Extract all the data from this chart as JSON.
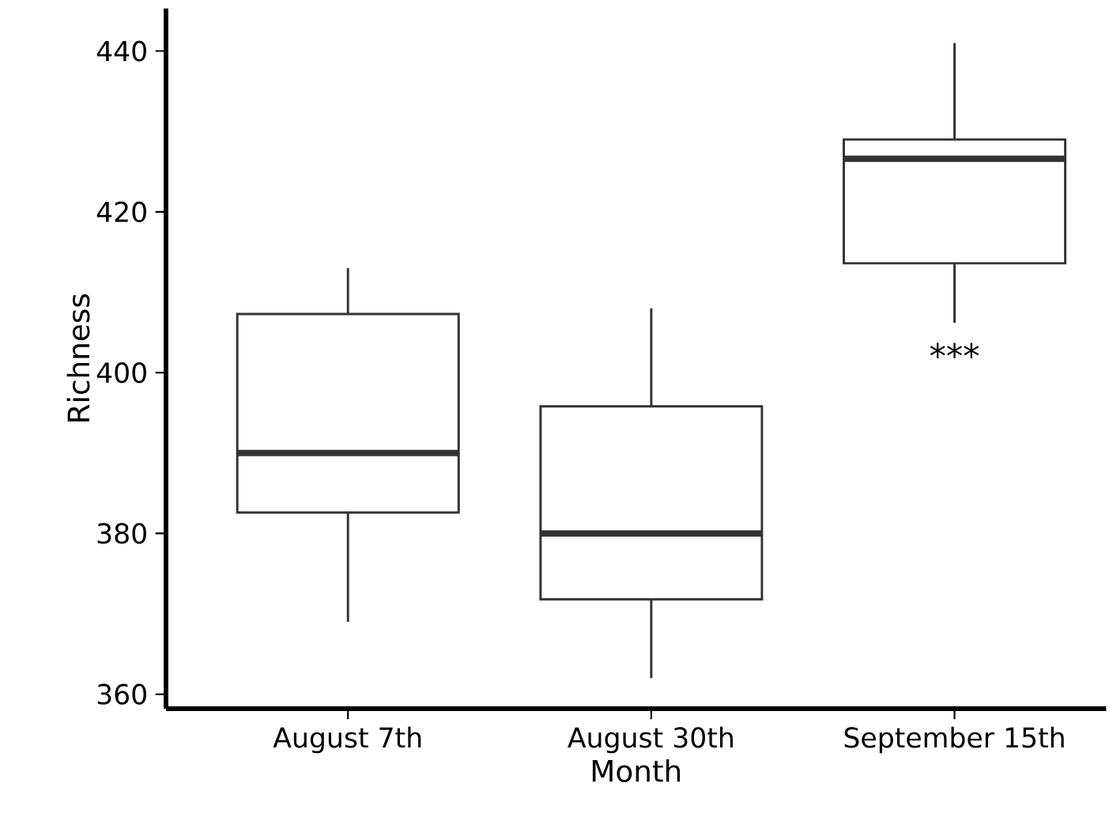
{
  "chart_data": {
    "type": "box",
    "xlabel": "Month",
    "ylabel": "Richness",
    "categories": [
      "August 7th",
      "August 30th",
      "September 15th"
    ],
    "boxes": [
      {
        "low": 369,
        "q1": 382.6,
        "median": 390,
        "q3": 407.3,
        "high": 413
      },
      {
        "low": 362,
        "q1": 371.8,
        "median": 380,
        "q3": 395.8,
        "high": 408
      },
      {
        "low": 406.2,
        "q1": 413.6,
        "median": 426.6,
        "q3": 429,
        "high": 441
      }
    ],
    "color": "#333333",
    "ylim": [
      358.2,
      445.3
    ],
    "yticks": [
      360,
      380,
      400,
      420,
      440
    ],
    "grid": false,
    "annotations": [
      "***"
    ]
  }
}
